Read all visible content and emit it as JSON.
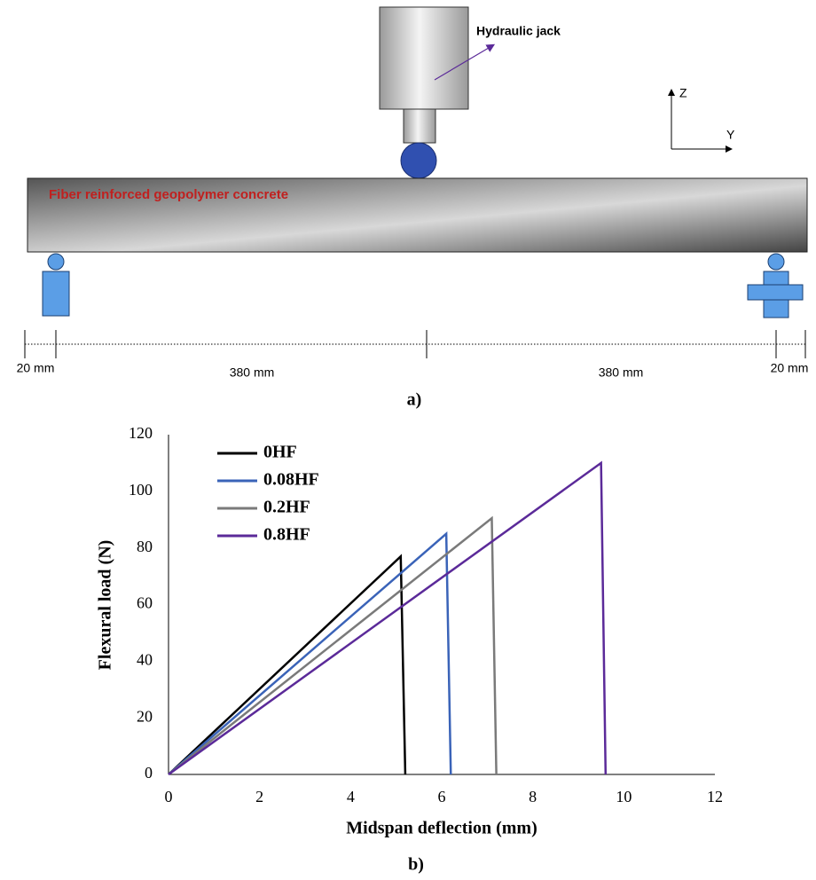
{
  "diagram": {
    "jack_label": "Hydraulic jack",
    "beam_label": "Fiber reinforced geopolymer concrete",
    "axis_z": "Z",
    "axis_y": "Y",
    "dimensions": [
      "20 mm",
      "380 mm",
      "380 mm",
      "20 mm"
    ],
    "caption": "a)"
  },
  "chart_data": {
    "type": "line",
    "caption": "b)",
    "x_label": "Midspan deflection (mm)",
    "y_label": "Flexural load (N)",
    "xlim": [
      0,
      12
    ],
    "xticks": [
      0,
      2,
      4,
      6,
      8,
      10,
      12
    ],
    "ylim": [
      0,
      120
    ],
    "yticks": [
      0,
      20,
      40,
      60,
      80,
      100,
      120
    ],
    "grid": false,
    "legend": "upper left",
    "series": [
      {
        "name": "0HF",
        "color": "#000000",
        "x": [
          0,
          5.1,
          5.2
        ],
        "values": [
          0,
          77,
          0
        ]
      },
      {
        "name": "0.08HF",
        "color": "#3a63b8",
        "x": [
          0,
          6.1,
          6.2
        ],
        "values": [
          0,
          85,
          0
        ]
      },
      {
        "name": "0.2HF",
        "color": "#7a7a7a",
        "x": [
          0,
          7.1,
          7.2
        ],
        "values": [
          0,
          90.5,
          0
        ]
      },
      {
        "name": "0.8HF",
        "color": "#5b2a99",
        "x": [
          0,
          9.5,
          9.6
        ],
        "values": [
          0,
          110,
          0
        ]
      }
    ]
  }
}
